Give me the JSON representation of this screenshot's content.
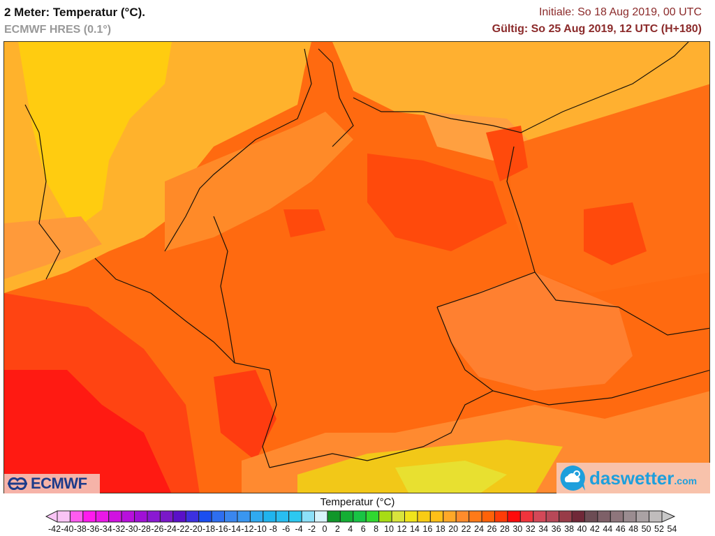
{
  "header": {
    "title": "2 Meter: Temperatur (°C).",
    "model": "ECMWF HRES (0.1°)",
    "init": "Initiale: So 18 Aug 2019, 00 UTC",
    "valid": "Gültig: So 25 Aug 2019, 12 UTC (H+180)"
  },
  "map": {
    "region": "Central Europe (Germany, Benelux, Poland, Czechia, Alps)",
    "dominant_colors": {
      "north_sea": "#ffc21a",
      "baltic": "#ffb030",
      "land_warm": "#ff6a10",
      "land_hot": "#ff4a0c",
      "france_hot": "#ff1a1a",
      "alps_cool": "#f0e020"
    }
  },
  "logos": {
    "ecmwf": "ECMWF",
    "daswetter": "daswetter",
    "daswetter_suffix": ".com"
  },
  "colorbar": {
    "title": "Temperatur (°C)",
    "labels": [
      "-42",
      "-40",
      "-38",
      "-36",
      "-34",
      "-32",
      "-30",
      "-28",
      "-26",
      "-24",
      "-22",
      "-20",
      "-18",
      "-16",
      "-14",
      "-12",
      "-10",
      "-8",
      "-6",
      "-4",
      "-2",
      "0",
      "2",
      "4",
      "6",
      "8",
      "10",
      "12",
      "14",
      "16",
      "18",
      "20",
      "22",
      "24",
      "26",
      "28",
      "30",
      "32",
      "34",
      "36",
      "38",
      "40",
      "42",
      "44",
      "46",
      "48",
      "50",
      "52",
      "54"
    ],
    "colors": [
      "#f9c4f5",
      "#ff5cf0",
      "#ff1aee",
      "#ea18e8",
      "#d012e0",
      "#b810dc",
      "#a010d6",
      "#8a18d2",
      "#7a18c8",
      "#5a10c8",
      "#3c30e0",
      "#1a4ef0",
      "#2e6ef0",
      "#3a86ee",
      "#3a96f0",
      "#30aaf0",
      "#20b4ee",
      "#28bdf0",
      "#2cc8f0",
      "#8ce0f8",
      "#d8f4fc",
      "#10962a",
      "#14ae34",
      "#18c444",
      "#30d830",
      "#a8dc14",
      "#d8e43c",
      "#f0e41c",
      "#f8cc14",
      "#ffc018",
      "#ffa828",
      "#ff8c2c",
      "#ff7a18",
      "#ff6208",
      "#ff3c08",
      "#ff0a0a",
      "#f0343c",
      "#d44858",
      "#b84858",
      "#983c48",
      "#702838",
      "#6c4c54",
      "#7e6068",
      "#8e767c",
      "#9a8c90",
      "#aaa2a4",
      "#c0bcbc"
    ]
  }
}
